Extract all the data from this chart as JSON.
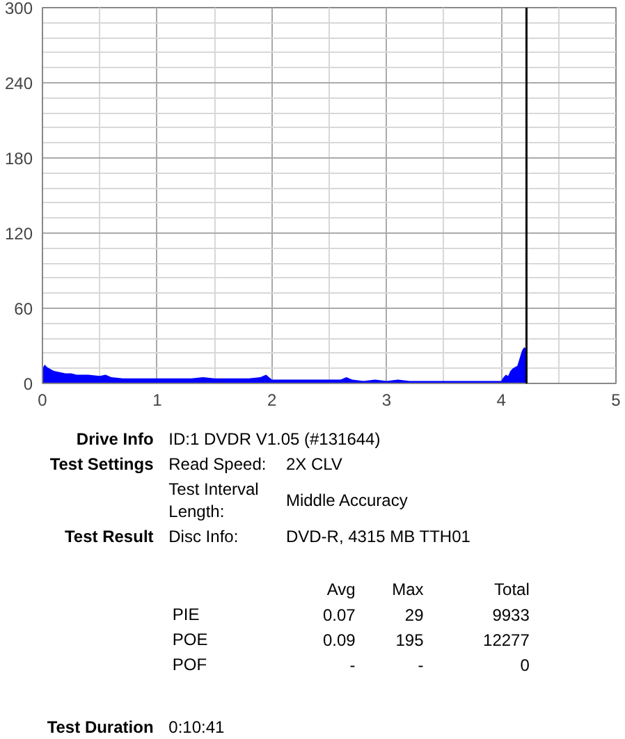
{
  "chart_data": {
    "type": "area",
    "x": [
      0.0,
      0.02,
      0.04,
      0.06,
      0.08,
      0.1,
      0.15,
      0.2,
      0.25,
      0.3,
      0.4,
      0.5,
      0.55,
      0.6,
      0.7,
      0.8,
      0.9,
      1.0,
      1.1,
      1.2,
      1.3,
      1.4,
      1.5,
      1.6,
      1.7,
      1.8,
      1.9,
      1.95,
      2.0,
      2.1,
      2.2,
      2.3,
      2.4,
      2.5,
      2.6,
      2.65,
      2.7,
      2.8,
      2.9,
      3.0,
      3.1,
      3.2,
      3.3,
      3.4,
      3.5,
      3.6,
      3.7,
      3.8,
      3.9,
      3.95,
      4.0,
      4.02,
      4.04,
      4.06,
      4.08,
      4.1,
      4.12,
      4.14,
      4.16,
      4.18,
      4.2,
      4.22
    ],
    "series": [
      {
        "color": "#0000ff",
        "values": [
          12,
          15,
          13,
          12,
          11,
          10,
          9,
          8,
          8,
          7,
          7,
          6,
          7,
          5,
          4,
          4,
          4,
          4,
          4,
          4,
          4,
          5,
          4,
          4,
          4,
          4,
          5,
          7,
          3,
          3,
          3,
          3,
          3,
          3,
          3,
          5,
          3,
          2,
          3,
          2,
          3,
          2,
          2,
          2,
          2,
          2,
          2,
          2,
          2,
          2,
          2,
          5,
          7,
          6,
          10,
          12,
          13,
          14,
          20,
          26,
          29,
          27
        ]
      }
    ],
    "xlim": [
      0,
      5
    ],
    "ylim": [
      0,
      300
    ],
    "xticks": [
      0,
      1,
      2,
      3,
      4,
      5
    ],
    "yticks": [
      0,
      60,
      120,
      180,
      240,
      300
    ],
    "grid": true,
    "ref_lines": [
      {
        "axis": "x",
        "value": 4.22,
        "color": "#000000"
      }
    ],
    "annotations": [
      "Drive Info",
      "ID:1 DVDR V1.05 (#131644)",
      "Test Settings",
      "Read Speed:",
      "2X CLV",
      "Test Interval",
      "Length:",
      "Middle Accuracy",
      "Test Result",
      "Disc Info:",
      "DVD-R, 4315 MB TTH01",
      "Avg",
      "Max",
      "Total",
      "PIE",
      "0.07",
      "29",
      "9933",
      "POE",
      "0.09",
      "195",
      "12277",
      "POF",
      "-",
      "-",
      "0",
      "Test Duration",
      "0:10:41"
    ]
  }
}
